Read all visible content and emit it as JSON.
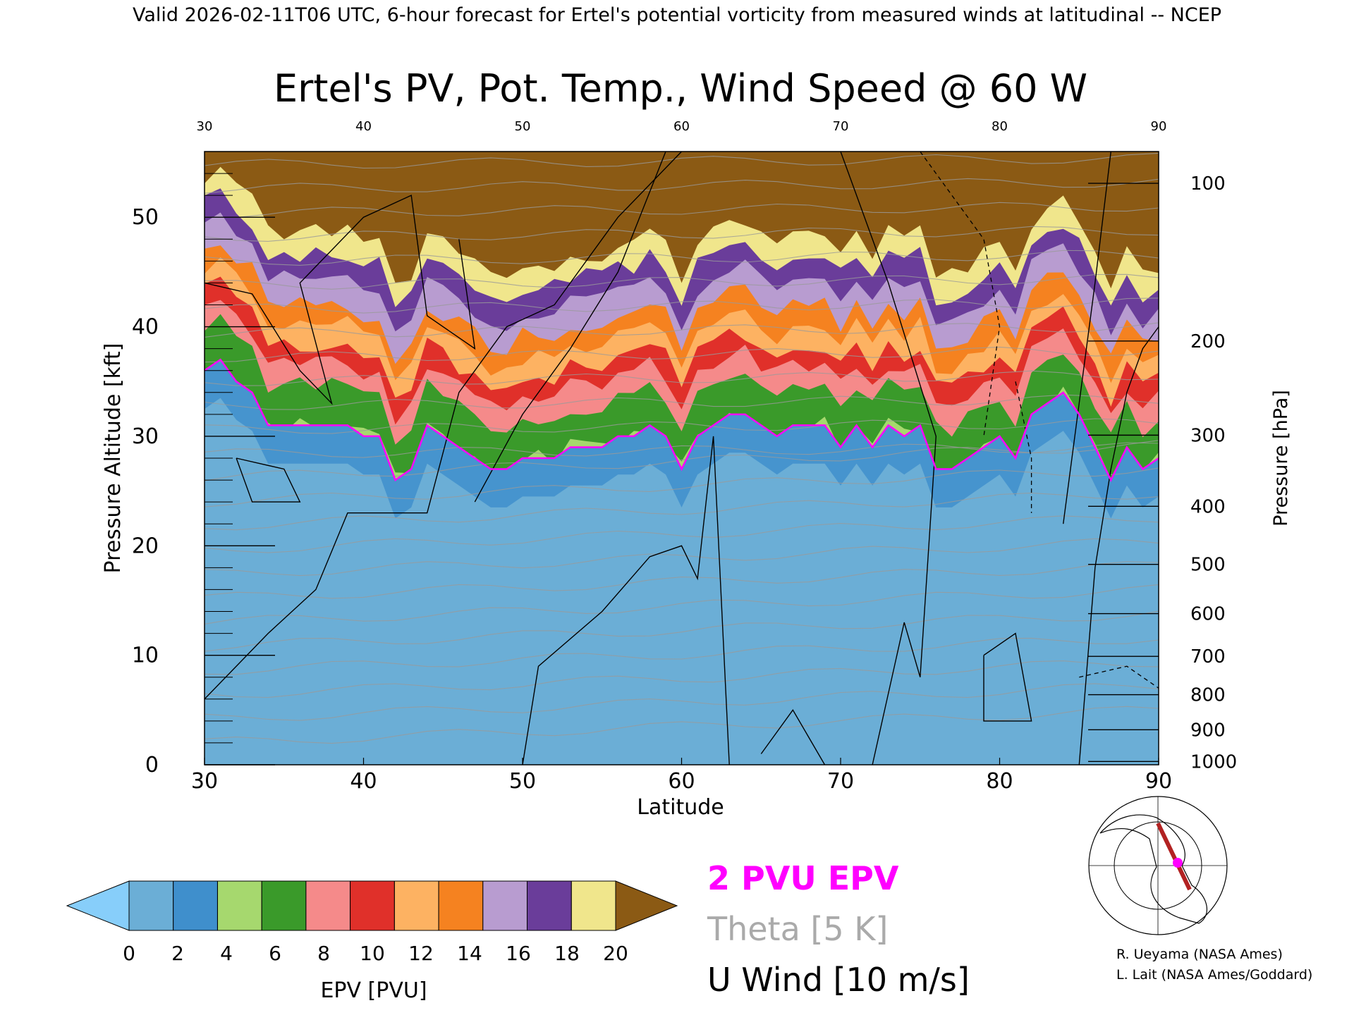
{
  "header": {
    "valid_line": "Valid 2026-02-11T06 UTC, 6-hour forecast for Ertel's potential vorticity from measured winds at latitudinal -- NCEP"
  },
  "chart_data": {
    "type": "heatmap",
    "title": "Ertel's PV, Pot. Temp., Wind Speed @ 60 W",
    "xlabel": "Latitude",
    "ylabel": "Pressure Altitude [kft]",
    "y2label": "Pressure [hPa]",
    "xlim": [
      30,
      90
    ],
    "ylim": [
      0,
      56
    ],
    "x_ticks": [
      "30",
      "40",
      "50",
      "60",
      "70",
      "80",
      "90"
    ],
    "top_x_ticks": [
      "30",
      "40",
      "50",
      "60",
      "70",
      "80",
      "90"
    ],
    "y_ticks": [
      "0",
      "10",
      "20",
      "30",
      "40",
      "50"
    ],
    "pressure_ticks": [
      {
        "label": "100",
        "kft": 53.1
      },
      {
        "label": "200",
        "kft": 38.7
      },
      {
        "label": "300",
        "kft": 30.1
      },
      {
        "label": "400",
        "kft": 23.6
      },
      {
        "label": "500",
        "kft": 18.3
      },
      {
        "label": "600",
        "kft": 13.8
      },
      {
        "label": "700",
        "kft": 9.9
      },
      {
        "label": "800",
        "kft": 6.4
      },
      {
        "label": "900",
        "kft": 3.2
      },
      {
        "label": "1000",
        "kft": 0.3
      }
    ],
    "colorbar": {
      "label": "EPV [PVU]",
      "ticks": [
        "0",
        "2",
        "4",
        "6",
        "8",
        "10",
        "12",
        "14",
        "16",
        "18",
        "20"
      ],
      "colors": [
        "#6baed6",
        "#3f8fcc",
        "#a6d86e",
        "#3a9a2a",
        "#f58a8a",
        "#e0302a",
        "#fdb262",
        "#f58220",
        "#b89cd0",
        "#6a3d9a",
        "#f0e68c"
      ],
      "under_color": "#87cefa",
      "over_color": "#8b5a14"
    },
    "series": [
      {
        "name": "2 PVU EPV",
        "color": "#ff00ff",
        "x": [
          30,
          31,
          32,
          33,
          34,
          35,
          36,
          37,
          38,
          39,
          40,
          41,
          42,
          43,
          44,
          45,
          46,
          47,
          48,
          49,
          50,
          51,
          52,
          53,
          54,
          55,
          56,
          57,
          58,
          59,
          60,
          61,
          62,
          63,
          64,
          65,
          66,
          67,
          68,
          69,
          70,
          71,
          72,
          73,
          74,
          75,
          76,
          77,
          78,
          79,
          80,
          81,
          82,
          83,
          84,
          85,
          86,
          87,
          88,
          89,
          90
        ],
        "y": [
          36,
          37,
          35,
          34,
          31,
          31,
          31,
          31,
          31,
          31,
          30,
          30,
          26,
          27,
          31,
          30,
          29,
          28,
          27,
          27,
          28,
          28,
          28,
          29,
          29,
          29,
          30,
          30,
          31,
          30,
          27,
          30,
          31,
          32,
          32,
          31,
          30,
          31,
          31,
          31,
          29,
          31,
          29,
          31,
          30,
          31,
          27,
          27,
          28,
          29,
          30,
          28,
          32,
          33,
          34,
          32,
          29,
          26,
          29,
          27,
          28
        ]
      },
      {
        "name": "Theta [5 K]",
        "color": "#aaaaaa",
        "levels": [
          "290",
          "300",
          "310",
          "320",
          "330",
          "340",
          "350",
          "360",
          "370",
          "380",
          "390",
          "400",
          "410",
          "420"
        ]
      },
      {
        "name": "U Wind [10 m/s]",
        "color": "#000000",
        "levels": [
          "-10",
          "0",
          "10",
          "20",
          "30"
        ]
      }
    ],
    "legend": [
      {
        "text": "2 PVU EPV",
        "color": "#ff00ff"
      },
      {
        "text": "Theta [5 K]",
        "color": "#aaaaaa"
      },
      {
        "text": "U Wind [10 m/s]",
        "color": "#000000"
      }
    ]
  },
  "credits": {
    "line1": "R. Ueyama (NASA Ames)",
    "line2": "L. Lait (NASA Ames/Goddard)"
  }
}
